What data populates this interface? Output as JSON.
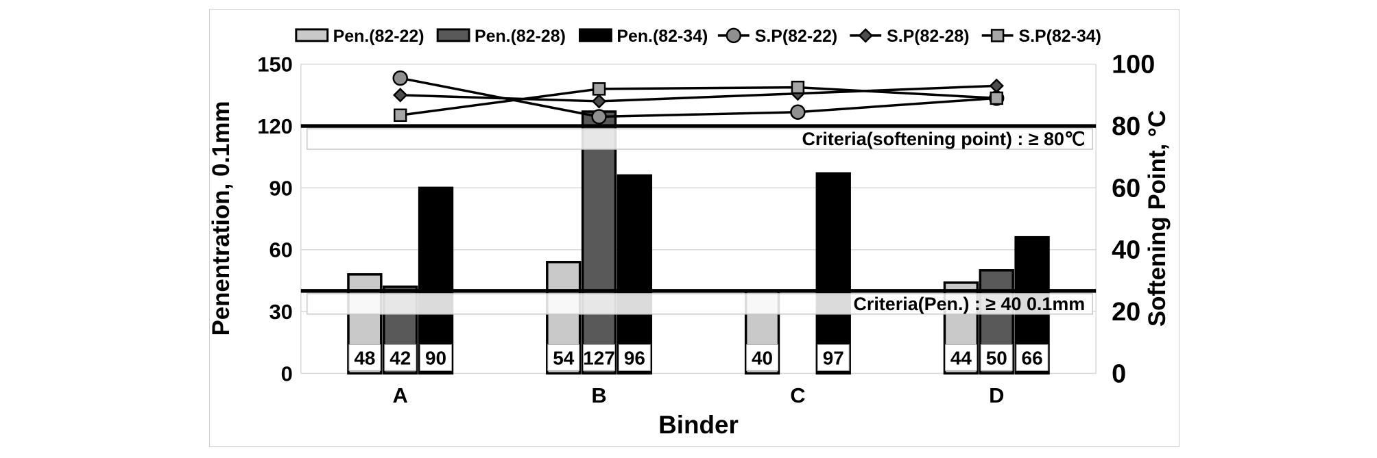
{
  "chart_data": {
    "type": "bar+line",
    "title": "",
    "xlabel": "Binder",
    "ylabel_left": "Penentration, 0.1mm",
    "ylabel_right": "Softening Point, °C",
    "categories": [
      "A",
      "B",
      "C",
      "D"
    ],
    "axes": {
      "left_range": [
        0,
        150
      ],
      "left_ticks": [
        "0",
        "30",
        "60",
        "90",
        "120",
        "150"
      ],
      "left_tick_values": [
        0,
        30,
        60,
        90,
        120,
        150
      ],
      "right_range": [
        0,
        100
      ],
      "right_ticks": [
        "0",
        "20",
        "40",
        "60",
        "80",
        "100"
      ],
      "right_tick_values": [
        0,
        20,
        40,
        60,
        80,
        100
      ],
      "grid": true
    },
    "legend_position": "top",
    "series_bars": [
      {
        "name": "Pen.(82-22)",
        "color": "#c9c9c9",
        "values": [
          48,
          54,
          40,
          44
        ]
      },
      {
        "name": "Pen.(82-28)",
        "color": "#595959",
        "values": [
          42,
          127,
          null,
          50
        ]
      },
      {
        "name": "Pen.(82-34)",
        "color": "#000000",
        "values": [
          90,
          96,
          97,
          66
        ]
      }
    ],
    "series_lines": [
      {
        "name": "S.P(82-22)",
        "marker": "circle",
        "marker_fill": "#909090",
        "values": [
          95.5,
          83,
          84.5,
          89
        ]
      },
      {
        "name": "S.P(82-28)",
        "marker": "diamond",
        "marker_fill": "#4d4d4d",
        "values": [
          90,
          88,
          90.5,
          93
        ]
      },
      {
        "name": "S.P(82-34)",
        "marker": "square",
        "marker_fill": "#a6a6a6",
        "values": [
          83.5,
          92,
          92.5,
          89
        ]
      }
    ],
    "criteria": [
      {
        "label": "Criteria(softening point) : ≥ 80℃",
        "axis": "right",
        "value": 80
      },
      {
        "label": "Criteria(Pen.) : ≥ 40 0.1mm",
        "axis": "left",
        "value": 40
      }
    ],
    "colors": {
      "gridline": "#d9d9d9",
      "criteria_line": "#000000",
      "criteria_box_border": "#c6c6c6",
      "bar_label_bg": "#ffffff"
    }
  }
}
